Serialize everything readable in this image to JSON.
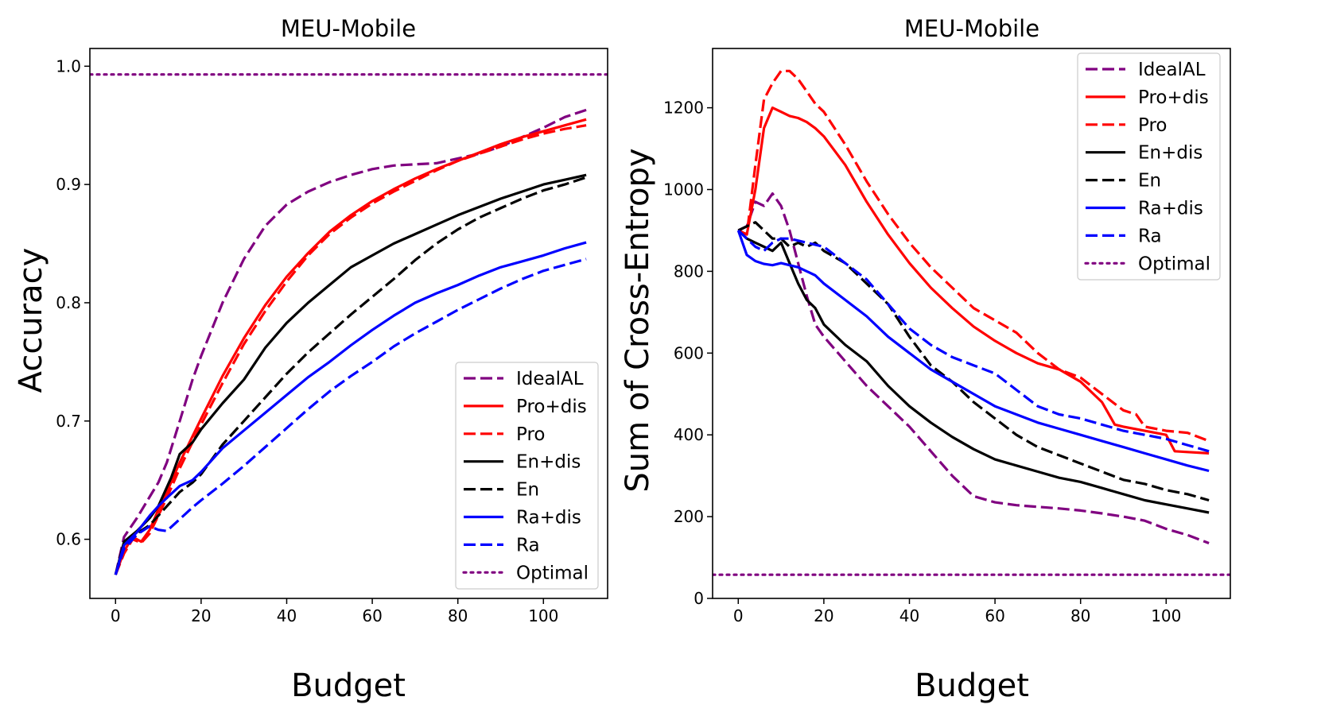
{
  "chart_data": [
    {
      "type": "line",
      "title": "MEU-Mobile",
      "xlabel": "Budget",
      "ylabel": "Accuracy",
      "xlim": [
        -6,
        115
      ],
      "ylim": [
        0.55,
        1.015
      ],
      "xticks": [
        0,
        20,
        40,
        60,
        80,
        100
      ],
      "yticks": [
        0.6,
        0.7,
        0.8,
        0.9,
        1.0
      ],
      "ytick_labels": [
        "0.6",
        "0.7",
        "0.8",
        "0.9",
        "1.0"
      ],
      "legend_position": "lower-right",
      "series": [
        {
          "name": "IdealAL",
          "color": "#800080",
          "dash": "dashed",
          "x": [
            0,
            2,
            5,
            8,
            10,
            12,
            15,
            18,
            20,
            25,
            30,
            35,
            40,
            45,
            50,
            55,
            60,
            65,
            70,
            75,
            80,
            85,
            90,
            95,
            100,
            105,
            110
          ],
          "y": [
            0.57,
            0.602,
            0.618,
            0.636,
            0.648,
            0.665,
            0.7,
            0.735,
            0.755,
            0.8,
            0.837,
            0.865,
            0.883,
            0.894,
            0.902,
            0.908,
            0.913,
            0.916,
            0.917,
            0.918,
            0.922,
            0.926,
            0.932,
            0.94,
            0.948,
            0.957,
            0.963
          ]
        },
        {
          "name": "Pro+dis",
          "color": "#ff0000",
          "dash": "solid",
          "x": [
            0,
            2,
            4,
            6,
            8,
            10,
            12,
            15,
            20,
            25,
            30,
            35,
            40,
            45,
            50,
            55,
            60,
            65,
            70,
            75,
            80,
            85,
            90,
            95,
            100,
            105,
            110
          ],
          "y": [
            0.57,
            0.59,
            0.602,
            0.598,
            0.608,
            0.625,
            0.64,
            0.665,
            0.702,
            0.738,
            0.77,
            0.798,
            0.822,
            0.842,
            0.86,
            0.874,
            0.886,
            0.896,
            0.905,
            0.913,
            0.92,
            0.927,
            0.934,
            0.94,
            0.945,
            0.95,
            0.955
          ]
        },
        {
          "name": "Pro",
          "color": "#ff0000",
          "dash": "dashed",
          "x": [
            0,
            2,
            4,
            6,
            8,
            10,
            12,
            15,
            20,
            25,
            30,
            35,
            40,
            45,
            50,
            55,
            60,
            65,
            70,
            75,
            80,
            85,
            90,
            95,
            100,
            105,
            110
          ],
          "y": [
            0.57,
            0.588,
            0.6,
            0.597,
            0.605,
            0.62,
            0.635,
            0.66,
            0.697,
            0.732,
            0.765,
            0.793,
            0.818,
            0.84,
            0.858,
            0.872,
            0.884,
            0.894,
            0.903,
            0.912,
            0.92,
            0.926,
            0.932,
            0.938,
            0.943,
            0.947,
            0.95
          ]
        },
        {
          "name": "En+dis",
          "color": "#000000",
          "dash": "solid",
          "x": [
            0,
            2,
            5,
            8,
            10,
            13,
            15,
            18,
            20,
            25,
            30,
            35,
            40,
            45,
            50,
            55,
            60,
            65,
            70,
            75,
            80,
            85,
            90,
            95,
            100,
            105,
            110
          ],
          "y": [
            0.57,
            0.598,
            0.607,
            0.618,
            0.628,
            0.652,
            0.672,
            0.682,
            0.693,
            0.715,
            0.735,
            0.762,
            0.783,
            0.8,
            0.815,
            0.83,
            0.84,
            0.85,
            0.858,
            0.866,
            0.874,
            0.881,
            0.888,
            0.894,
            0.9,
            0.904,
            0.908
          ]
        },
        {
          "name": "En",
          "color": "#000000",
          "dash": "dashed",
          "x": [
            0,
            2,
            5,
            8,
            10,
            13,
            15,
            18,
            20,
            25,
            30,
            35,
            40,
            45,
            50,
            55,
            60,
            65,
            70,
            75,
            80,
            85,
            90,
            95,
            100,
            105,
            110
          ],
          "y": [
            0.57,
            0.595,
            0.605,
            0.612,
            0.62,
            0.632,
            0.64,
            0.648,
            0.655,
            0.68,
            0.7,
            0.72,
            0.74,
            0.758,
            0.774,
            0.79,
            0.805,
            0.82,
            0.836,
            0.85,
            0.862,
            0.872,
            0.88,
            0.888,
            0.895,
            0.9,
            0.906
          ]
        },
        {
          "name": "Ra+dis",
          "color": "#0000ff",
          "dash": "solid",
          "x": [
            0,
            2,
            5,
            8,
            10,
            12,
            15,
            18,
            20,
            25,
            30,
            35,
            40,
            45,
            50,
            55,
            60,
            65,
            70,
            75,
            80,
            85,
            90,
            95,
            100,
            105,
            110
          ],
          "y": [
            0.57,
            0.595,
            0.606,
            0.62,
            0.628,
            0.635,
            0.645,
            0.65,
            0.657,
            0.677,
            0.692,
            0.707,
            0.722,
            0.737,
            0.75,
            0.764,
            0.777,
            0.789,
            0.8,
            0.808,
            0.815,
            0.823,
            0.83,
            0.835,
            0.84,
            0.846,
            0.851
          ]
        },
        {
          "name": "Ra",
          "color": "#0000ff",
          "dash": "dashed",
          "x": [
            0,
            2,
            5,
            8,
            10,
            12,
            15,
            18,
            20,
            25,
            30,
            35,
            40,
            45,
            50,
            55,
            60,
            65,
            70,
            75,
            80,
            85,
            90,
            95,
            100,
            105,
            110
          ],
          "y": [
            0.57,
            0.592,
            0.604,
            0.611,
            0.608,
            0.607,
            0.617,
            0.627,
            0.633,
            0.647,
            0.662,
            0.678,
            0.694,
            0.71,
            0.725,
            0.738,
            0.75,
            0.763,
            0.774,
            0.784,
            0.794,
            0.803,
            0.812,
            0.82,
            0.827,
            0.832,
            0.837
          ]
        },
        {
          "name": "Optimal",
          "color": "#800080",
          "dash": "dotted",
          "x": [
            -6,
            115
          ],
          "y": [
            0.993,
            0.993
          ]
        }
      ]
    },
    {
      "type": "line",
      "title": "MEU-Mobile",
      "xlabel": "Budget",
      "ylabel": "Sum of Cross-Entropy",
      "xlim": [
        -6,
        115
      ],
      "ylim": [
        0,
        1345
      ],
      "xticks": [
        0,
        20,
        40,
        60,
        80,
        100
      ],
      "yticks": [
        0,
        200,
        400,
        600,
        800,
        1000,
        1200
      ],
      "ytick_labels": [
        "0",
        "200",
        "400",
        "600",
        "800",
        "1000",
        "1200"
      ],
      "legend_position": "top-right",
      "series": [
        {
          "name": "IdealAL",
          "color": "#800080",
          "dash": "dashed",
          "x": [
            0,
            2,
            4,
            6,
            8,
            10,
            12,
            14,
            16,
            18,
            20,
            25,
            30,
            35,
            40,
            45,
            50,
            55,
            60,
            65,
            70,
            75,
            80,
            85,
            90,
            95,
            100,
            105,
            110
          ],
          "y": [
            900,
            910,
            970,
            960,
            990,
            960,
            900,
            820,
            740,
            670,
            640,
            580,
            520,
            470,
            420,
            360,
            300,
            250,
            235,
            228,
            224,
            220,
            215,
            208,
            200,
            190,
            170,
            155,
            135
          ]
        },
        {
          "name": "Pro+dis",
          "color": "#ff0000",
          "dash": "solid",
          "x": [
            0,
            2,
            4,
            6,
            8,
            10,
            12,
            14,
            16,
            18,
            20,
            25,
            30,
            35,
            40,
            45,
            50,
            55,
            60,
            65,
            70,
            75,
            80,
            85,
            88,
            90,
            95,
            100,
            102,
            105,
            110
          ],
          "y": [
            900,
            890,
            1000,
            1150,
            1200,
            1190,
            1180,
            1175,
            1165,
            1150,
            1130,
            1060,
            970,
            890,
            820,
            760,
            710,
            665,
            630,
            600,
            575,
            560,
            530,
            480,
            425,
            420,
            410,
            400,
            360,
            358,
            355
          ]
        },
        {
          "name": "Pro",
          "color": "#ff0000",
          "dash": "dashed",
          "x": [
            0,
            2,
            4,
            6,
            8,
            10,
            12,
            14,
            16,
            18,
            20,
            25,
            30,
            35,
            40,
            45,
            50,
            55,
            60,
            65,
            70,
            75,
            80,
            85,
            90,
            93,
            95,
            100,
            105,
            110
          ],
          "y": [
            900,
            890,
            1060,
            1220,
            1260,
            1290,
            1290,
            1270,
            1240,
            1210,
            1190,
            1110,
            1020,
            940,
            870,
            810,
            760,
            710,
            680,
            650,
            600,
            560,
            540,
            500,
            460,
            450,
            420,
            410,
            405,
            385
          ]
        },
        {
          "name": "En+dis",
          "color": "#000000",
          "dash": "solid",
          "x": [
            0,
            2,
            4,
            6,
            8,
            10,
            12,
            14,
            16,
            18,
            20,
            25,
            30,
            35,
            40,
            45,
            50,
            55,
            60,
            65,
            70,
            75,
            80,
            85,
            90,
            95,
            100,
            105,
            110
          ],
          "y": [
            900,
            880,
            870,
            860,
            850,
            870,
            820,
            770,
            730,
            710,
            670,
            620,
            580,
            520,
            470,
            430,
            395,
            365,
            340,
            325,
            310,
            295,
            285,
            270,
            255,
            240,
            230,
            220,
            210
          ]
        },
        {
          "name": "En",
          "color": "#000000",
          "dash": "dashed",
          "x": [
            0,
            2,
            4,
            6,
            8,
            10,
            12,
            14,
            16,
            18,
            20,
            25,
            30,
            35,
            40,
            45,
            50,
            55,
            60,
            65,
            70,
            75,
            80,
            85,
            90,
            95,
            100,
            105,
            110
          ],
          "y": [
            900,
            910,
            920,
            900,
            880,
            880,
            860,
            870,
            860,
            870,
            850,
            820,
            770,
            720,
            640,
            570,
            530,
            480,
            440,
            400,
            370,
            350,
            330,
            310,
            290,
            280,
            265,
            255,
            240
          ]
        },
        {
          "name": "Ra+dis",
          "color": "#0000ff",
          "dash": "solid",
          "x": [
            0,
            2,
            4,
            6,
            8,
            10,
            12,
            14,
            16,
            18,
            20,
            25,
            30,
            35,
            40,
            45,
            50,
            55,
            60,
            65,
            70,
            75,
            80,
            85,
            90,
            95,
            100,
            105,
            110
          ],
          "y": [
            900,
            840,
            825,
            818,
            815,
            820,
            815,
            810,
            800,
            790,
            770,
            730,
            690,
            640,
            600,
            560,
            530,
            500,
            470,
            450,
            430,
            415,
            400,
            385,
            370,
            355,
            340,
            325,
            312
          ]
        },
        {
          "name": "Ra",
          "color": "#0000ff",
          "dash": "dashed",
          "x": [
            0,
            2,
            4,
            6,
            8,
            10,
            12,
            14,
            16,
            18,
            20,
            25,
            30,
            35,
            40,
            45,
            50,
            55,
            60,
            65,
            70,
            75,
            80,
            85,
            90,
            95,
            100,
            105,
            110
          ],
          "y": [
            900,
            880,
            860,
            850,
            870,
            880,
            880,
            875,
            870,
            865,
            860,
            820,
            780,
            720,
            660,
            620,
            590,
            570,
            550,
            510,
            470,
            450,
            440,
            425,
            410,
            400,
            390,
            375,
            360
          ]
        },
        {
          "name": "Optimal",
          "color": "#800080",
          "dash": "dotted",
          "x": [
            -6,
            115
          ],
          "y": [
            58,
            58
          ]
        }
      ]
    }
  ]
}
